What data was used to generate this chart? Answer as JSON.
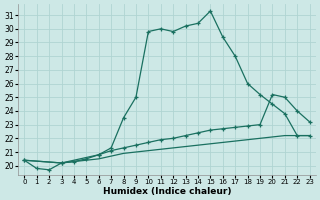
{
  "xlabel": "Humidex (Indice chaleur)",
  "bg_color": "#cde8e6",
  "grid_color": "#b0d4d2",
  "line_color": "#1a7060",
  "xlim": [
    -0.5,
    23.5
  ],
  "ylim": [
    19.3,
    31.8
  ],
  "xticks": [
    0,
    1,
    2,
    3,
    4,
    5,
    6,
    7,
    8,
    9,
    10,
    11,
    12,
    13,
    14,
    15,
    16,
    17,
    18,
    19,
    20,
    21,
    22,
    23
  ],
  "yticks": [
    20,
    21,
    22,
    23,
    24,
    25,
    26,
    27,
    28,
    29,
    30,
    31
  ],
  "curve1_x": [
    0,
    1,
    2,
    3,
    4,
    5,
    6,
    7,
    8,
    9,
    10,
    11,
    12,
    13,
    14,
    15,
    16,
    17,
    18,
    19,
    20,
    21,
    22,
    23
  ],
  "curve1_y": [
    20.4,
    19.8,
    19.7,
    20.2,
    20.3,
    20.5,
    20.8,
    21.3,
    23.5,
    25.0,
    29.8,
    30.0,
    29.8,
    30.2,
    30.4,
    31.3,
    29.4,
    28.0,
    26.0,
    25.2,
    24.5,
    23.8,
    22.2,
    22.2
  ],
  "curve2_x": [
    0,
    3,
    6,
    7,
    8,
    9,
    10,
    11,
    12,
    13,
    14,
    15,
    16,
    17,
    18,
    19,
    20,
    21,
    22,
    23
  ],
  "curve2_y": [
    20.4,
    20.2,
    20.8,
    21.1,
    21.3,
    21.5,
    21.7,
    21.9,
    22.0,
    22.2,
    22.4,
    22.6,
    22.7,
    22.8,
    22.9,
    23.0,
    25.2,
    25.0,
    24.0,
    23.2
  ],
  "curve3_x": [
    0,
    3,
    6,
    7,
    8,
    9,
    10,
    11,
    12,
    13,
    14,
    15,
    16,
    17,
    18,
    19,
    20,
    21,
    22,
    23
  ],
  "curve3_y": [
    20.4,
    20.2,
    20.5,
    20.7,
    20.9,
    21.0,
    21.1,
    21.2,
    21.3,
    21.4,
    21.5,
    21.6,
    21.7,
    21.8,
    21.9,
    22.0,
    22.1,
    22.2,
    22.2,
    22.2
  ],
  "marker_style": "+",
  "lw1": 0.9,
  "lw2": 0.9,
  "lw3": 0.9,
  "ms1": 3.5,
  "ms2": 3.5
}
